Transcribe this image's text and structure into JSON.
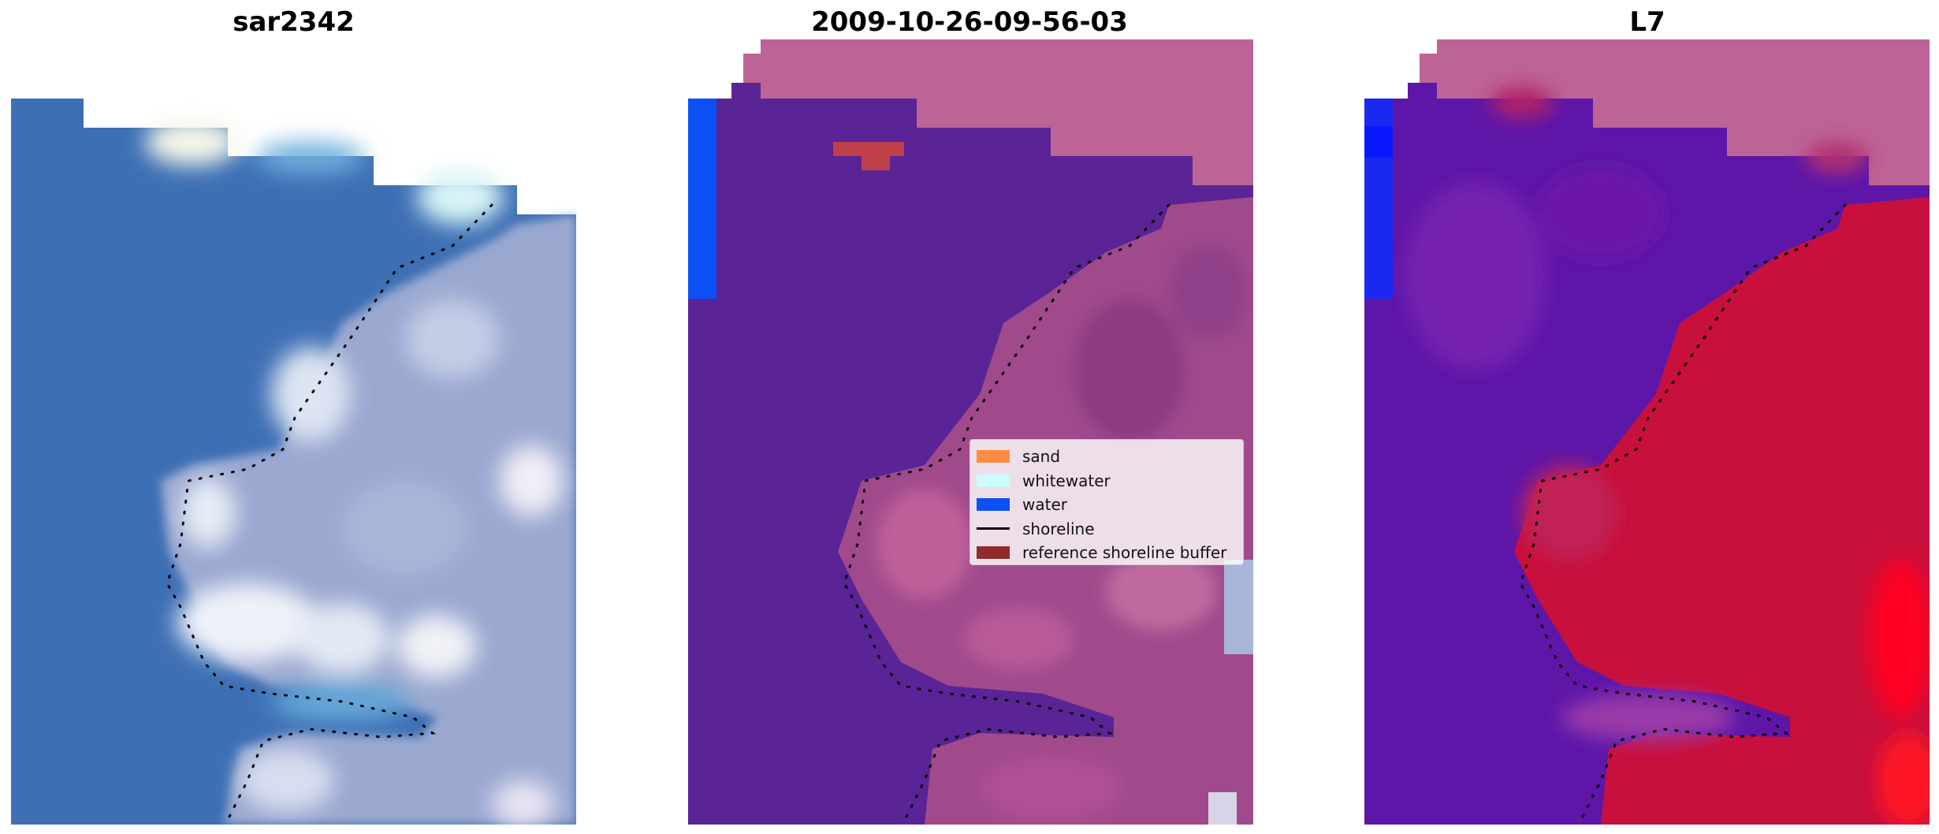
{
  "titles": {
    "left": "sar2342",
    "middle": "2009-10-26-09-56-03",
    "right": "L7"
  },
  "legend": {
    "items": [
      {
        "label": "sand",
        "color": "#ff8c42",
        "kind": "patch"
      },
      {
        "label": "whitewater",
        "color": "#ccfcfc",
        "kind": "patch"
      },
      {
        "label": "water",
        "color": "#0a50f5",
        "kind": "patch"
      },
      {
        "label": "shoreline",
        "color": "#000000",
        "kind": "line"
      },
      {
        "label": "reference shoreline buffer",
        "color": "#922b2b",
        "kind": "patch"
      }
    ]
  },
  "colors": {
    "rgb_water": "#3d6fb4",
    "rgb_land": "#9aa8d0",
    "rgb_foam": "#e8eef6",
    "class_water_bg": "#5a2496",
    "class_nodata": "#bd6496",
    "class_land": "#a04a8c",
    "class_water": "#0a50f5",
    "class_buffer": "#c0404a",
    "index_water": "#5e16a8",
    "index_land": "#c8103c",
    "index_high": "#ff0020",
    "index_low": "#1a28f0"
  }
}
